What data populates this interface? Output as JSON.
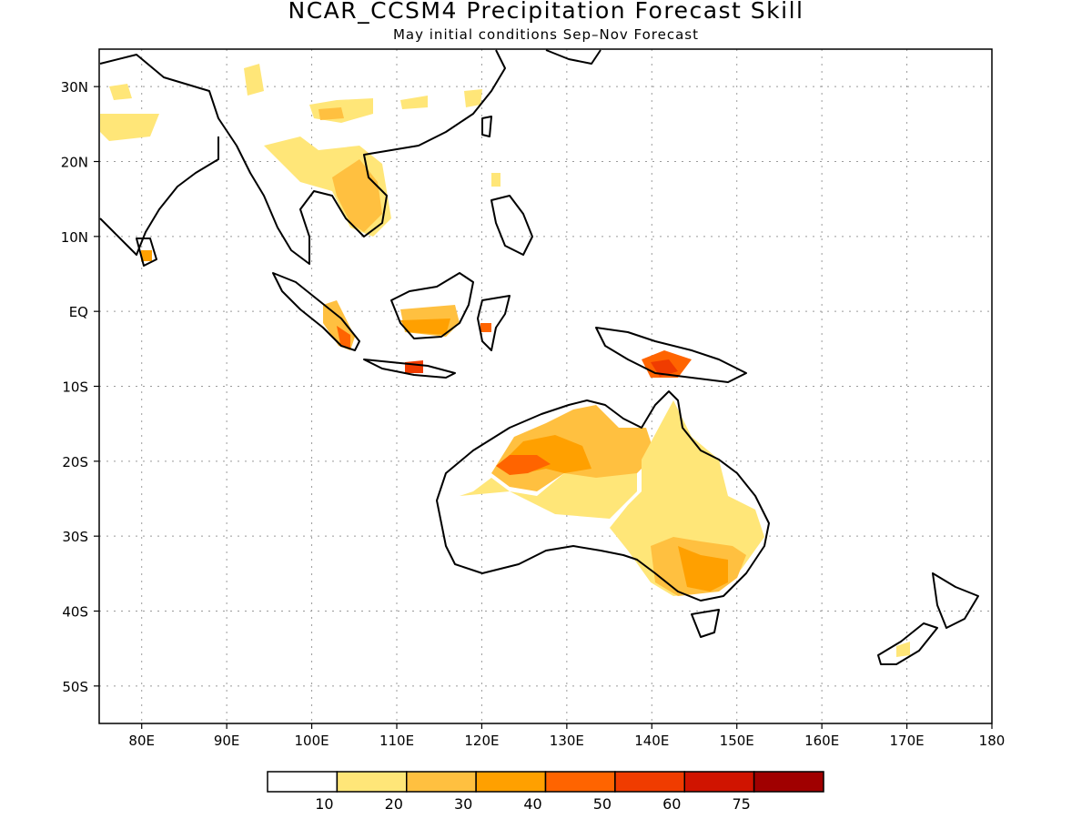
{
  "title": "NCAR_CCSM4 Precipitation Forecast Skill",
  "subtitle": "May initial conditions  Sep–Nov Forecast",
  "map": {
    "lon_range": [
      75,
      180
    ],
    "lat_range": [
      -55,
      35
    ],
    "lon_ticks": [
      80,
      90,
      100,
      110,
      120,
      130,
      140,
      150,
      160,
      170,
      180
    ],
    "lon_tick_labels": [
      "80E",
      "90E",
      "100E",
      "110E",
      "120E",
      "130E",
      "140E",
      "150E",
      "160E",
      "170E",
      "180"
    ],
    "lat_ticks": [
      30,
      20,
      10,
      0,
      -10,
      -20,
      -30,
      -40,
      -50
    ],
    "lat_tick_labels": [
      "30N",
      "20N",
      "10N",
      "EQ",
      "10S",
      "20S",
      "30S",
      "40S",
      "50S"
    ],
    "grid": true
  },
  "colorbar": {
    "colors": [
      "#ffffff",
      "#ffe678",
      "#ffc040",
      "#ffa000",
      "#ff6400",
      "#f03c00",
      "#d01400",
      "#a00000"
    ],
    "labels": [
      "10",
      "20",
      "30",
      "40",
      "50",
      "60",
      "75"
    ]
  }
}
